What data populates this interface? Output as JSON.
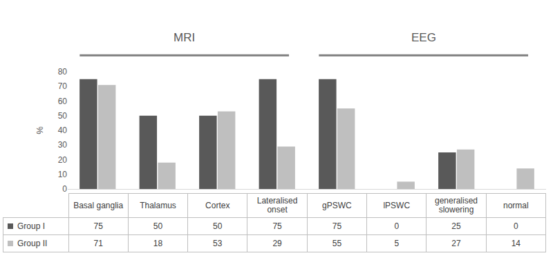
{
  "chart_data": {
    "type": "bar",
    "categories": [
      "Basal ganglia",
      "Thalamus",
      "Cortex",
      "Lateralised onset",
      "gPSWC",
      "lPSWC",
      "generalised slowering",
      "normal"
    ],
    "series": [
      {
        "name": "Group I",
        "color": "#595959",
        "values": [
          75,
          50,
          50,
          75,
          75,
          0,
          25,
          0
        ]
      },
      {
        "name": "Group II",
        "color": "#bfbfbf",
        "values": [
          71,
          18,
          53,
          29,
          55,
          5,
          27,
          14
        ]
      }
    ],
    "groups": [
      {
        "label": "MRI",
        "categories": [
          "Basal ganglia",
          "Thalamus",
          "Cortex",
          "Lateralised onset"
        ]
      },
      {
        "label": "EEG",
        "categories": [
          "gPSWC",
          "lPSWC",
          "generalised slowering",
          "normal"
        ]
      }
    ],
    "y_label": "%",
    "ylim": [
      0,
      80
    ],
    "yticks": [
      0,
      10,
      20,
      30,
      40,
      50,
      60,
      70,
      80
    ],
    "grid": false
  }
}
